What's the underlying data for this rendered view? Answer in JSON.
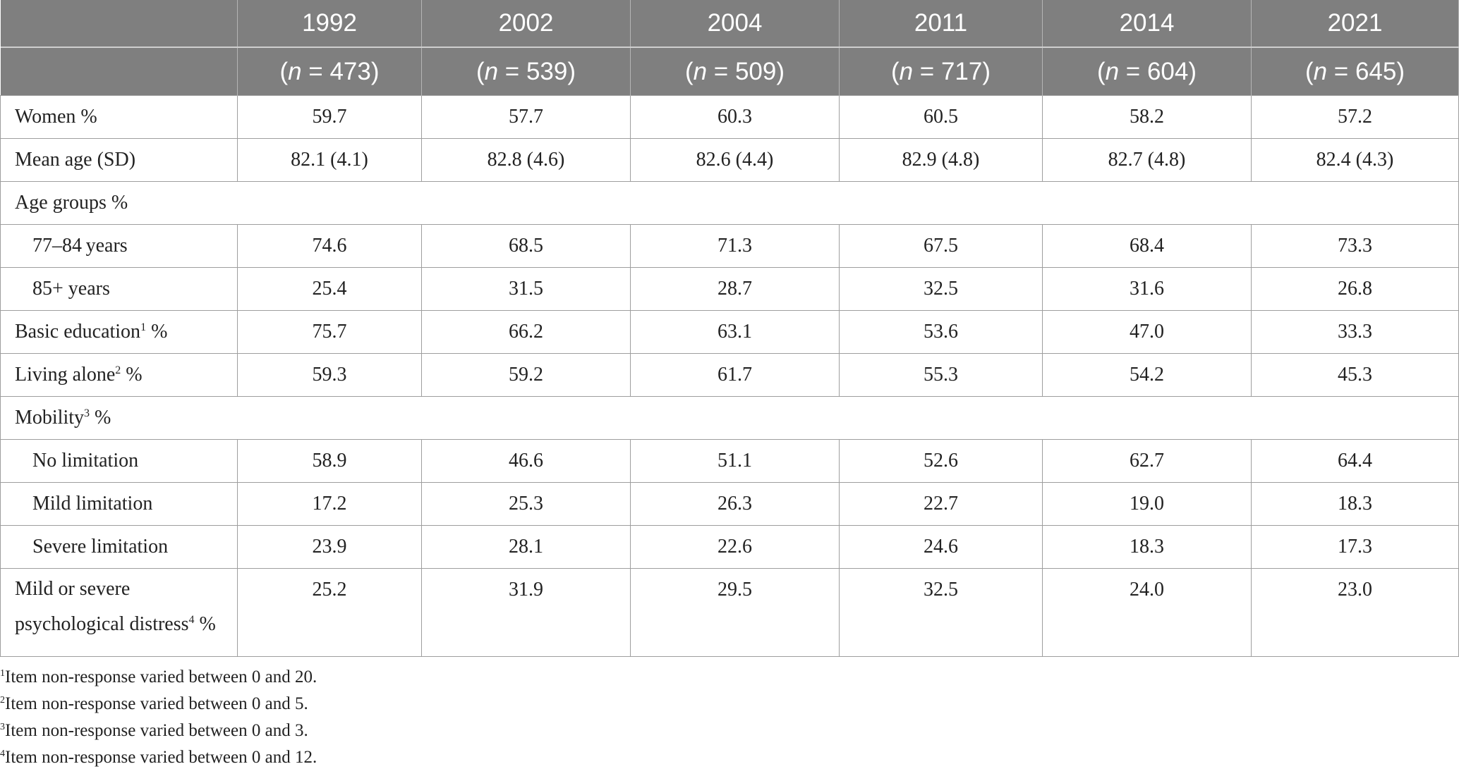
{
  "header": {
    "years": [
      "1992",
      "2002",
      "2004",
      "2011",
      "2014",
      "2021"
    ],
    "n_prefix": "(",
    "n_symbol": "n",
    "n_eq": " = ",
    "n_suffix": ")",
    "n_values": [
      "473",
      "539",
      "509",
      "717",
      "604",
      "645"
    ]
  },
  "rows": [
    {
      "label": "Women %",
      "values": [
        "59.7",
        "57.7",
        "60.3",
        "60.5",
        "58.2",
        "57.2"
      ]
    },
    {
      "label": "Mean age (SD)",
      "values": [
        "82.1 (4.1)",
        "82.8 (4.6)",
        "82.6 (4.4)",
        "82.9 (4.8)",
        "82.7 (4.8)",
        "82.4 (4.3)"
      ]
    },
    {
      "label": "Age groups %"
    },
    {
      "label": "77–84 years",
      "values": [
        "74.6",
        "68.5",
        "71.3",
        "67.5",
        "68.4",
        "73.3"
      ]
    },
    {
      "label": "85+ years",
      "values": [
        "25.4",
        "31.5",
        "28.7",
        "32.5",
        "31.6",
        "26.8"
      ]
    },
    {
      "label_pre": "Basic education",
      "sup": "1",
      "label_post": " %",
      "values": [
        "75.7",
        "66.2",
        "63.1",
        "53.6",
        "47.0",
        "33.3"
      ]
    },
    {
      "label_pre": "Living alone",
      "sup": "2",
      "label_post": " %",
      "values": [
        "59.3",
        "59.2",
        "61.7",
        "55.3",
        "54.2",
        "45.3"
      ]
    },
    {
      "label_pre": "Mobility",
      "sup": "3",
      "label_post": " %"
    },
    {
      "label": "No limitation",
      "values": [
        "58.9",
        "46.6",
        "51.1",
        "52.6",
        "62.7",
        "64.4"
      ]
    },
    {
      "label": "Mild limitation",
      "values": [
        "17.2",
        "25.3",
        "26.3",
        "22.7",
        "19.0",
        "18.3"
      ]
    },
    {
      "label": "Severe limitation",
      "values": [
        "23.9",
        "28.1",
        "22.6",
        "24.6",
        "18.3",
        "17.3"
      ]
    },
    {
      "label_line1": "Mild or severe",
      "label_pre": "psychological distress",
      "sup": "4",
      "label_post": " %",
      "values": [
        "25.2",
        "31.9",
        "29.5",
        "32.5",
        "24.0",
        "23.0"
      ]
    }
  ],
  "footnotes": [
    {
      "sup": "1",
      "text": "Item non-response varied between 0 and 20."
    },
    {
      "sup": "2",
      "text": "Item non-response varied between 0 and 5."
    },
    {
      "sup": "3",
      "text": "Item non-response varied between 0 and 3."
    },
    {
      "sup": "4",
      "text": "Item non-response varied between 0 and 12."
    }
  ]
}
